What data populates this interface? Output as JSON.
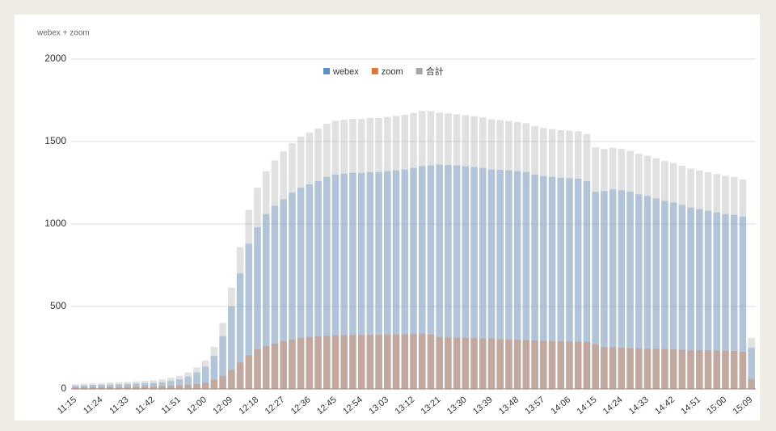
{
  "chart_data": {
    "type": "bar",
    "title": "webex + zoom",
    "categories": [
      "11:15",
      null,
      null,
      "11:24",
      null,
      null,
      "11:33",
      null,
      null,
      "11:42",
      null,
      null,
      "11:51",
      null,
      null,
      "12:00",
      null,
      null,
      "12:09",
      null,
      null,
      "12:18",
      null,
      null,
      "12:27",
      null,
      null,
      "12:36",
      null,
      null,
      "12:45",
      null,
      null,
      "12:54",
      null,
      null,
      "13:03",
      null,
      null,
      "13:12",
      null,
      null,
      "13:21",
      null,
      null,
      "13:30",
      null,
      null,
      "13:39",
      null,
      null,
      "13:48",
      null,
      null,
      "13:57",
      null,
      null,
      "14:06",
      null,
      null,
      "14:15",
      null,
      null,
      "14:24",
      null,
      null,
      "14:33",
      null,
      null,
      "14:42",
      null,
      null,
      "14:51",
      null,
      null,
      "15:00",
      null,
      null,
      "15:09"
    ],
    "series": [
      {
        "name": "合計",
        "color": "#a8a8a8",
        "values": [
          30,
          32,
          35,
          36,
          39,
          40,
          43,
          46,
          49,
          52,
          58,
          68,
          80,
          100,
          130,
          173,
          255,
          400,
          615,
          860,
          1085,
          1220,
          1320,
          1385,
          1440,
          1490,
          1530,
          1555,
          1578,
          1607,
          1625,
          1631,
          1637,
          1637,
          1643,
          1643,
          1649,
          1655,
          1662,
          1674,
          1685,
          1685,
          1675,
          1670,
          1665,
          1660,
          1653,
          1646,
          1635,
          1630,
          1625,
          1618,
          1611,
          1594,
          1582,
          1575,
          1569,
          1566,
          1562,
          1545,
          1465,
          1455,
          1462,
          1455,
          1443,
          1426,
          1414,
          1398,
          1382,
          1370,
          1353,
          1336,
          1325,
          1314,
          1303,
          1292,
          1285,
          1270,
          310
        ]
      },
      {
        "name": "webex",
        "color": "#5b8fc7",
        "values": [
          20,
          22,
          24,
          25,
          27,
          28,
          30,
          32,
          34,
          36,
          40,
          48,
          58,
          75,
          100,
          135,
          200,
          320,
          500,
          700,
          880,
          980,
          1060,
          1110,
          1150,
          1190,
          1220,
          1240,
          1260,
          1285,
          1300,
          1305,
          1310,
          1310,
          1315,
          1315,
          1320,
          1325,
          1330,
          1340,
          1350,
          1355,
          1360,
          1358,
          1355,
          1350,
          1345,
          1340,
          1330,
          1328,
          1325,
          1320,
          1315,
          1300,
          1290,
          1285,
          1280,
          1278,
          1275,
          1260,
          1195,
          1200,
          1210,
          1205,
          1195,
          1180,
          1170,
          1155,
          1140,
          1130,
          1115,
          1100,
          1090,
          1080,
          1070,
          1060,
          1055,
          1045,
          250
        ]
      },
      {
        "name": "zoom",
        "color": "#e0773a",
        "values": [
          10,
          10,
          11,
          11,
          12,
          12,
          13,
          14,
          15,
          16,
          18,
          20,
          22,
          25,
          30,
          38,
          55,
          80,
          115,
          160,
          205,
          240,
          260,
          275,
          290,
          300,
          310,
          315,
          318,
          322,
          325,
          326,
          327,
          327,
          328,
          328,
          329,
          330,
          332,
          334,
          335,
          330,
          315,
          312,
          310,
          310,
          308,
          306,
          305,
          302,
          300,
          298,
          296,
          294,
          292,
          290,
          289,
          288,
          287,
          285,
          270,
          255,
          252,
          250,
          248,
          246,
          244,
          243,
          242,
          240,
          238,
          236,
          235,
          234,
          233,
          232,
          230,
          225,
          60
        ]
      }
    ],
    "legend_order": [
      "webex",
      "zoom",
      "合計"
    ],
    "ylim": [
      0,
      2000
    ],
    "yticks": [
      0,
      500,
      1000,
      1500,
      2000
    ],
    "grid": true
  }
}
